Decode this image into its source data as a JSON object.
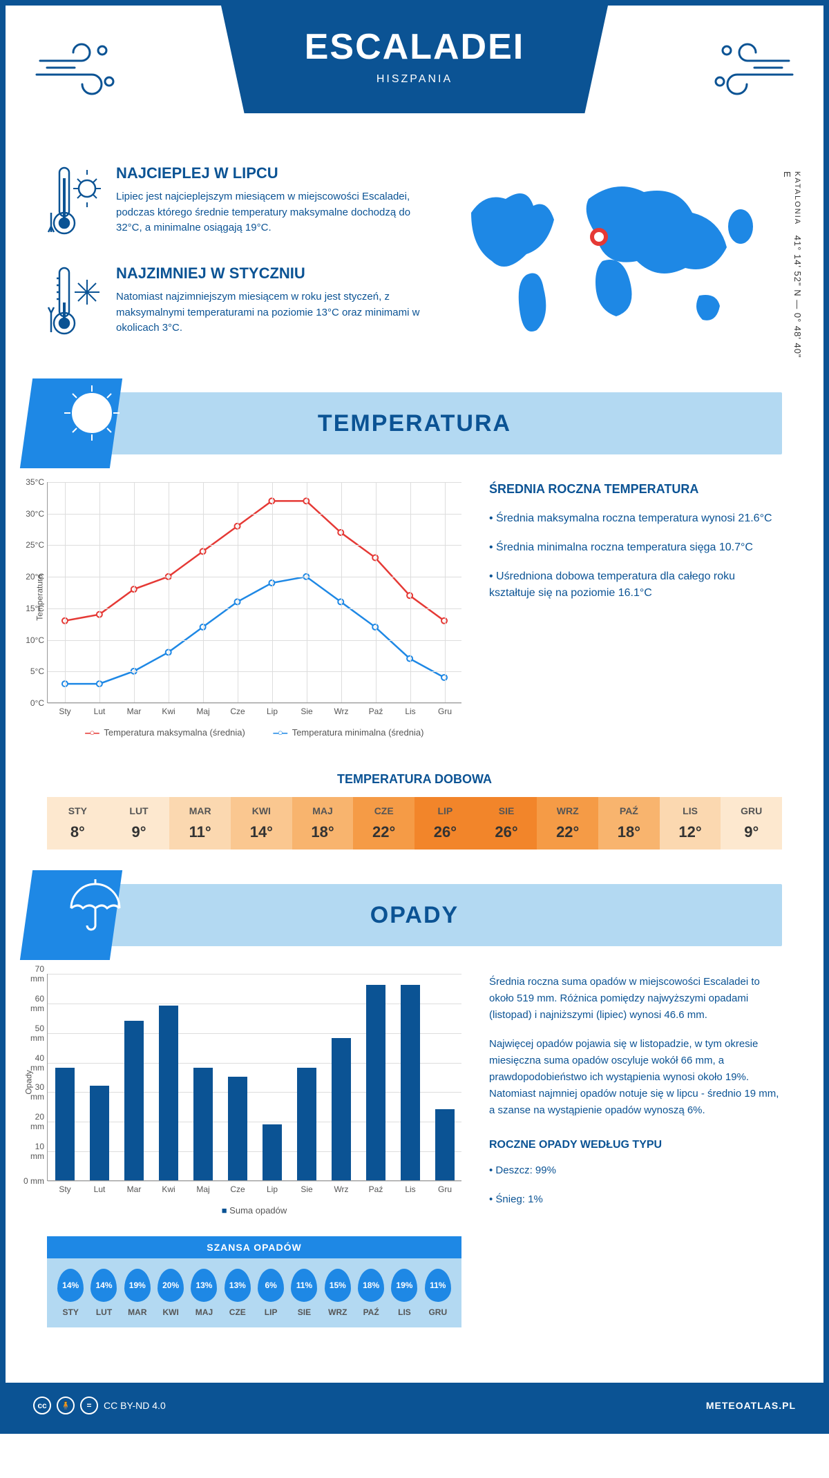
{
  "header": {
    "title": "ESCALADEI",
    "country": "HISZPANIA"
  },
  "coords": {
    "region": "KATALONIA",
    "lat": "41° 14' 52\" N",
    "lon": "0° 48' 40\" E"
  },
  "intro": {
    "hot": {
      "title": "NAJCIEPLEJ W LIPCU",
      "text": "Lipiec jest najcieplejszym miesiącem w miejscowości Escaladei, podczas którego średnie temperatury maksymalne dochodzą do 32°C, a minimalne osiągają 19°C."
    },
    "cold": {
      "title": "NAJZIMNIEJ W STYCZNIU",
      "text": "Natomiast najzimniejszym miesiącem w roku jest styczeń, z maksymalnymi temperaturami na poziomie 13°C oraz minimami w okolicach 3°C."
    }
  },
  "temp_section": {
    "title": "TEMPERATURA",
    "chart": {
      "type": "line",
      "ylabel": "Temperatura",
      "ylim": [
        0,
        35
      ],
      "ytick_step": 5,
      "ytick_suffix": "°C",
      "months": [
        "Sty",
        "Lut",
        "Mar",
        "Kwi",
        "Maj",
        "Cze",
        "Lip",
        "Sie",
        "Wrz",
        "Paź",
        "Lis",
        "Gru"
      ],
      "series": {
        "max": {
          "label": "Temperatura maksymalna (średnia)",
          "color": "#e53935",
          "values": [
            13,
            14,
            18,
            20,
            24,
            28,
            32,
            32,
            27,
            23,
            17,
            13
          ]
        },
        "min": {
          "label": "Temperatura minimalna (średnia)",
          "color": "#1e88e5",
          "values": [
            3,
            3,
            5,
            8,
            12,
            16,
            19,
            20,
            16,
            12,
            7,
            4
          ]
        }
      },
      "grid_color": "#dddddd",
      "background_color": "#ffffff"
    },
    "summary": {
      "title": "ŚREDNIA ROCZNA TEMPERATURA",
      "items": [
        "• Średnia maksymalna roczna temperatura wynosi 21.6°C",
        "• Średnia minimalna roczna temperatura sięga 10.7°C",
        "• Uśredniona dobowa temperatura dla całego roku kształtuje się na poziomie 16.1°C"
      ]
    },
    "daily": {
      "title": "TEMPERATURA DOBOWA",
      "months": [
        "STY",
        "LUT",
        "MAR",
        "KWI",
        "MAJ",
        "CZE",
        "LIP",
        "SIE",
        "WRZ",
        "PAŹ",
        "LIS",
        "GRU"
      ],
      "values": [
        "8°",
        "9°",
        "11°",
        "14°",
        "18°",
        "22°",
        "26°",
        "26°",
        "22°",
        "18°",
        "12°",
        "9°"
      ],
      "colors": [
        "#fde8cf",
        "#fde8cf",
        "#fbd8b0",
        "#fac790",
        "#f8b46e",
        "#f59b46",
        "#f2852a",
        "#f2852a",
        "#f59b46",
        "#f8b46e",
        "#fbd8b0",
        "#fde8cf"
      ]
    }
  },
  "precip_section": {
    "title": "OPADY",
    "chart": {
      "type": "bar",
      "ylabel": "Opady",
      "ylim": [
        0,
        70
      ],
      "ytick_step": 10,
      "ytick_suffix": " mm",
      "months": [
        "Sty",
        "Lut",
        "Mar",
        "Kwi",
        "Maj",
        "Cze",
        "Lip",
        "Sie",
        "Wrz",
        "Paź",
        "Lis",
        "Gru"
      ],
      "values": [
        38,
        32,
        54,
        59,
        38,
        35,
        19,
        38,
        48,
        66,
        66,
        24
      ],
      "bar_color": "#0b5394",
      "legend": "Suma opadów",
      "grid_color": "#dddddd"
    },
    "text": {
      "p1": "Średnia roczna suma opadów w miejscowości Escaladei to około 519 mm. Różnica pomiędzy najwyższymi opadami (listopad) i najniższymi (lipiec) wynosi 46.6 mm.",
      "p2": "Najwięcej opadów pojawia się w listopadzie, w tym okresie miesięczna suma opadów oscyluje wokół 66 mm, a prawdopodobieństwo ich wystąpienia wynosi około 19%. Natomiast najmniej opadów notuje się w lipcu - średnio 19 mm, a szanse na wystąpienie opadów wynoszą 6%."
    },
    "chance": {
      "title": "SZANSA OPADÓW",
      "months": [
        "STY",
        "LUT",
        "MAR",
        "KWI",
        "MAJ",
        "CZE",
        "LIP",
        "SIE",
        "WRZ",
        "PAŹ",
        "LIS",
        "GRU"
      ],
      "values": [
        "14%",
        "14%",
        "19%",
        "20%",
        "13%",
        "13%",
        "6%",
        "11%",
        "15%",
        "18%",
        "19%",
        "11%"
      ]
    },
    "by_type": {
      "title": "ROCZNE OPADY WEDŁUG TYPU",
      "items": [
        "• Deszcz: 99%",
        "• Śnieg: 1%"
      ]
    }
  },
  "footer": {
    "license": "CC BY-ND 4.0",
    "site": "METEOATLAS.PL"
  }
}
